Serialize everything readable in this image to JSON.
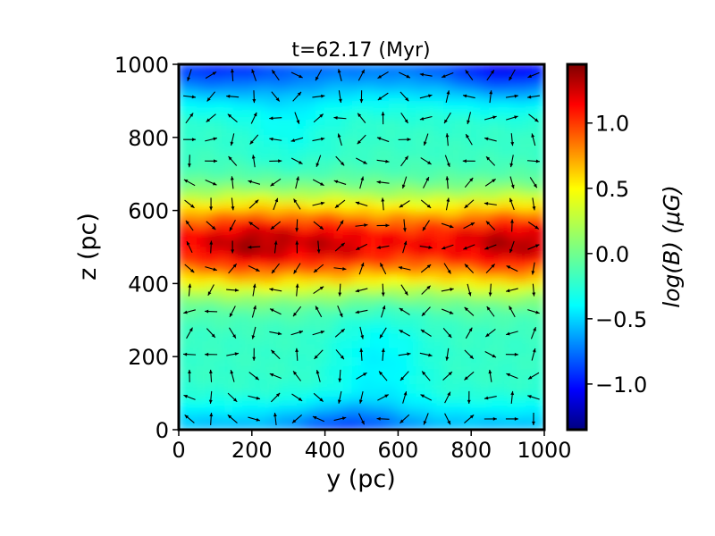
{
  "chart_data": {
    "type": "heatmap",
    "title": "t=62.17 (Myr)",
    "xlabel": "y (pc)",
    "ylabel": "z (pc)",
    "xlim": [
      0,
      1000
    ],
    "ylim": [
      0,
      1000
    ],
    "xticks": [
      "0",
      "200",
      "400",
      "600",
      "800",
      "1000"
    ],
    "xtick_values": [
      0,
      200,
      400,
      600,
      800,
      1000
    ],
    "yticks": [
      "0",
      "200",
      "400",
      "600",
      "800",
      "1000"
    ],
    "ytick_values": [
      0,
      200,
      400,
      600,
      800,
      1000
    ],
    "colorbar": {
      "label": "log(B) (μG)",
      "range": [
        -1.35,
        1.45
      ],
      "ticks": [
        "−1.0",
        "−0.5",
        "0.0",
        "0.5",
        "1.0"
      ],
      "tick_values": [
        -1.0,
        -0.5,
        0.0,
        0.5,
        1.0
      ],
      "colormap": "jet"
    },
    "field_description": "magnetic field strength in log scale, maximum in a horizontal band centered near z=500 pc with peaks near y=200 and y=900 pc; minimum near the top and bottom boundaries",
    "vectors": "magnetic field direction arrows on a regular grid",
    "grid": false
  }
}
